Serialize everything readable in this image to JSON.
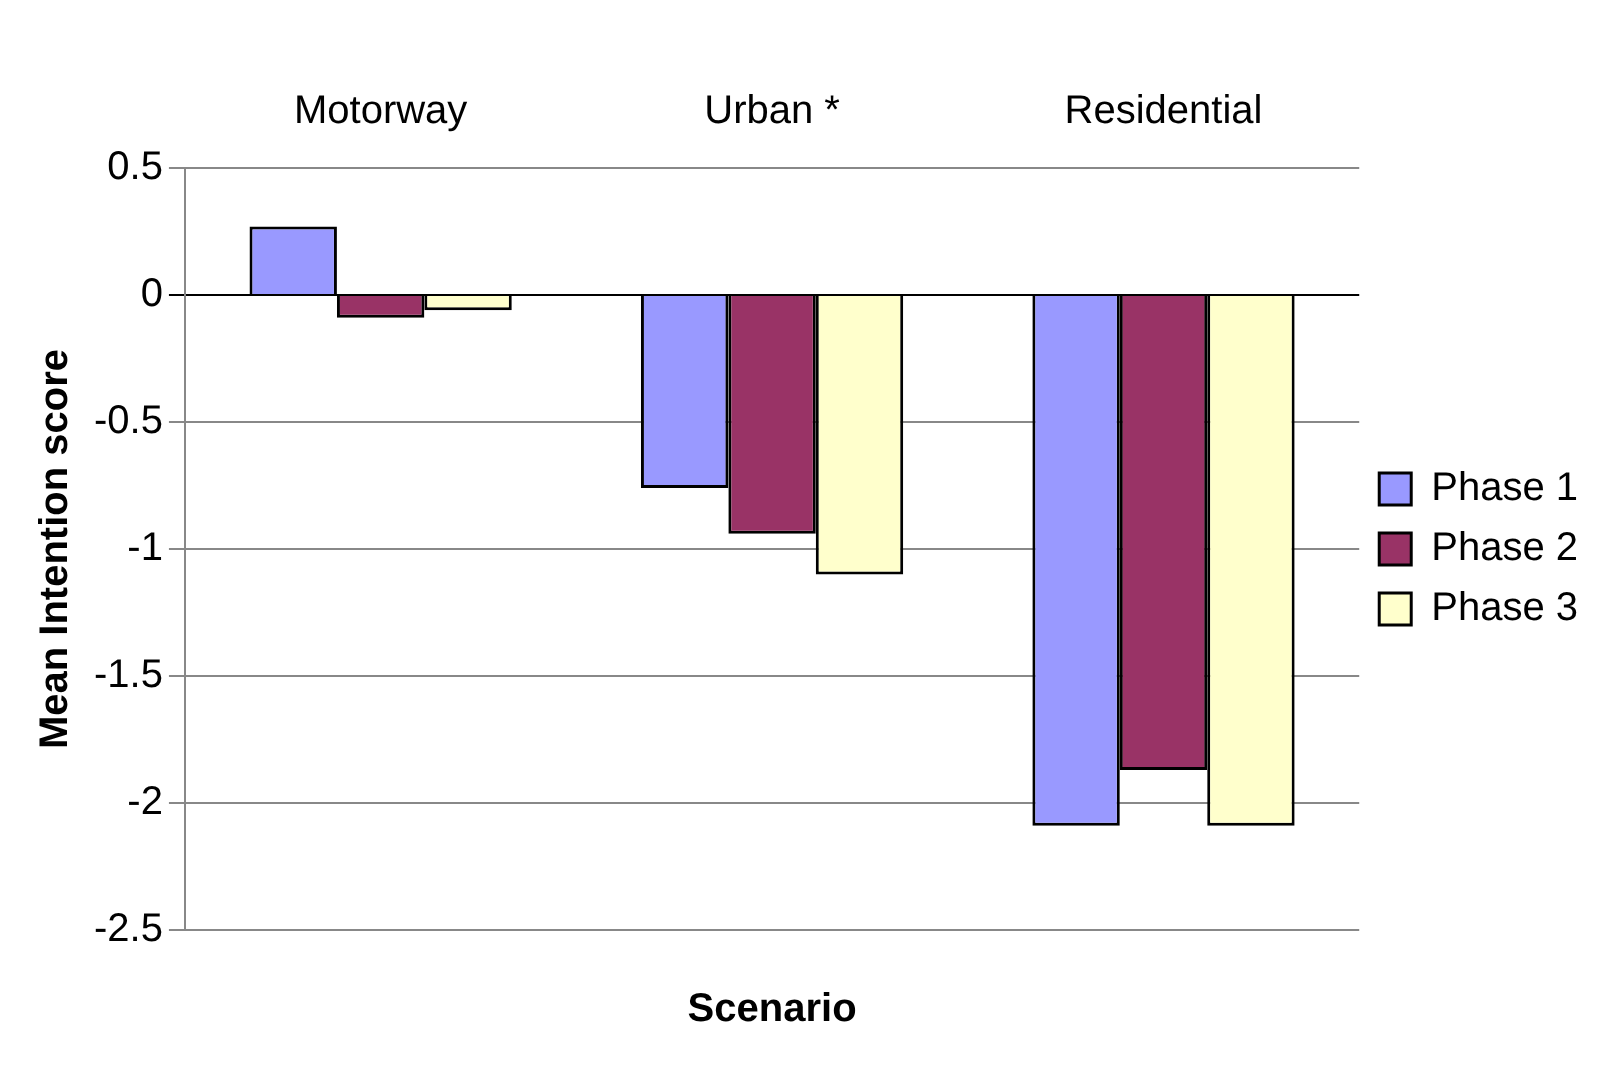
{
  "chart_data": {
    "type": "bar",
    "categories": [
      "Motorway",
      "Urban *",
      "Residential"
    ],
    "series": [
      {
        "name": "Phase 1",
        "color": "#9999ff",
        "values": [
          0.27,
          -0.76,
          -2.09
        ]
      },
      {
        "name": "Phase 2",
        "color": "#993366",
        "values": [
          -0.09,
          -0.94,
          -1.87
        ]
      },
      {
        "name": "Phase 3",
        "color": "#ffffcc",
        "values": [
          -0.06,
          -1.1,
          -2.09
        ]
      }
    ],
    "xlabel": "Scenario",
    "ylabel": "Mean Intention score",
    "ylim": [
      -2.5,
      0.5
    ],
    "yticks": [
      -2.5,
      -2,
      -1.5,
      -1,
      -0.5,
      0,
      0.5
    ],
    "grid": "y",
    "legend": "right"
  }
}
